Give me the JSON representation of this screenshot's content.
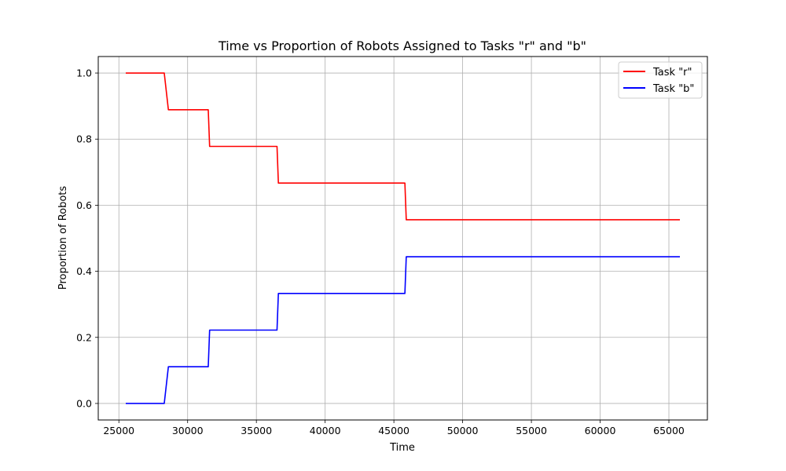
{
  "chart_data": {
    "type": "line",
    "step": true,
    "title": "Time vs Proportion of Robots Assigned to Tasks \"r\" and \"b\"",
    "xlabel": "Time",
    "ylabel": "Proportion of Robots",
    "xlim": [
      23500,
      67800
    ],
    "ylim": [
      -0.05,
      1.05
    ],
    "xticks": [
      25000,
      30000,
      35000,
      40000,
      45000,
      50000,
      55000,
      60000,
      65000
    ],
    "xtick_labels": [
      "25000",
      "30000",
      "35000",
      "40000",
      "45000",
      "50000",
      "55000",
      "60000",
      "65000"
    ],
    "yticks": [
      0.0,
      0.2,
      0.4,
      0.6,
      0.8,
      1.0
    ],
    "ytick_labels": [
      "0.0",
      "0.2",
      "0.4",
      "0.6",
      "0.8",
      "1.0"
    ],
    "grid": true,
    "legend_position": "top-right",
    "series": [
      {
        "name": "Task \"r\"",
        "color": "#ff0000",
        "x": [
          25500,
          28300,
          28600,
          31500,
          31600,
          36500,
          36600,
          45800,
          45900,
          65800
        ],
        "y": [
          1.0,
          1.0,
          0.889,
          0.889,
          0.778,
          0.778,
          0.667,
          0.667,
          0.556,
          0.556
        ]
      },
      {
        "name": "Task \"b\"",
        "color": "#0000ff",
        "x": [
          25500,
          28300,
          28600,
          31500,
          31600,
          36500,
          36600,
          45800,
          45900,
          65800
        ],
        "y": [
          0.0,
          0.0,
          0.111,
          0.111,
          0.222,
          0.222,
          0.333,
          0.333,
          0.444,
          0.444
        ]
      }
    ]
  }
}
